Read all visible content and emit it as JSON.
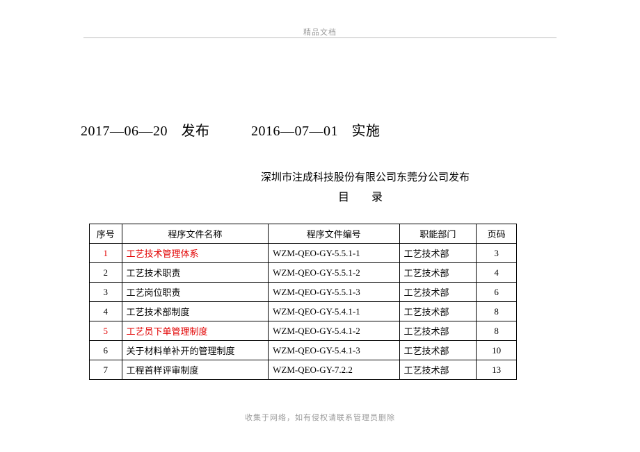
{
  "header_text": "精品文档",
  "date_publish": "2017—06—20",
  "label_publish": "发布",
  "date_effect": "2016—07—01",
  "label_effect": "实施",
  "publisher": "深圳市注成科技股份有限公司东莞分公司发布",
  "toc_title": "目 录",
  "table": {
    "columns": {
      "seq": "序号",
      "name": "程序文件名称",
      "code": "程序文件编号",
      "dept": "职能部门",
      "page": "页码"
    },
    "rows": [
      {
        "seq": "1",
        "name": "工艺技术管理体系",
        "code": "WZM-QEO-GY-5.5.1-1",
        "dept": "工艺技术部",
        "page": "3",
        "highlight": true
      },
      {
        "seq": "2",
        "name": "工艺技术职责",
        "code": "WZM-QEO-GY-5.5.1-2",
        "dept": "工艺技术部",
        "page": "4",
        "highlight": false
      },
      {
        "seq": "3",
        "name": "工艺岗位职责",
        "code": "WZM-QEO-GY-5.5.1-3",
        "dept": "工艺技术部",
        "page": "6",
        "highlight": false
      },
      {
        "seq": "4",
        "name": "工艺技术部制度",
        "code": "WZM-QEO-GY-5.4.1-1",
        "dept": "工艺技术部",
        "page": "8",
        "highlight": false
      },
      {
        "seq": "5",
        "name": "工艺员下单管理制度",
        "code": "WZM-QEO-GY-5.4.1-2",
        "dept": "工艺技术部",
        "page": "8",
        "highlight": true
      },
      {
        "seq": "6",
        "name": "关于材料单补开的管理制度",
        "code": "WZM-QEO-GY-5.4.1-3",
        "dept": "工艺技术部",
        "page": "10",
        "highlight": false
      },
      {
        "seq": "7",
        "name": "工程首样评审制度",
        "code": "WZM-QEO-GY-7.2.2",
        "dept": "工艺技术部",
        "page": "13",
        "highlight": false
      }
    ]
  },
  "footer_text": "收集于网络，如有侵权请联系管理员删除"
}
